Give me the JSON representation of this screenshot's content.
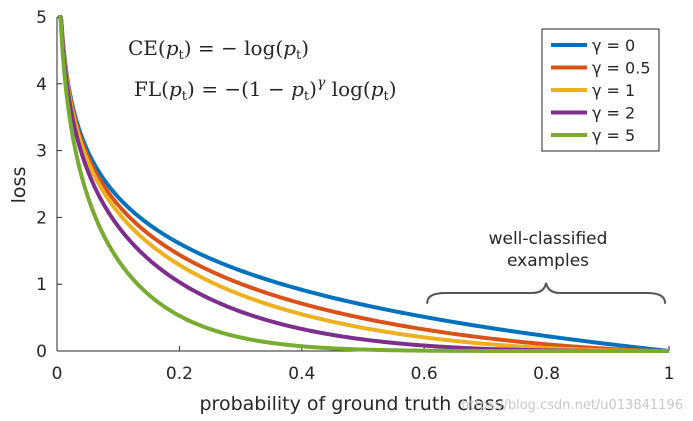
{
  "chart_data": {
    "type": "line",
    "title": "",
    "xlabel": "probability of ground truth class",
    "ylabel": "loss",
    "xlim": [
      0,
      1
    ],
    "ylim": [
      0,
      5
    ],
    "grid": false,
    "x_ticks": [
      "0",
      "0.2",
      "0.4",
      "0.6",
      "0.8",
      "1"
    ],
    "y_ticks": [
      "0",
      "1",
      "2",
      "3",
      "4",
      "5"
    ],
    "legend_position": "top-right",
    "series": [
      {
        "name": "γ = 0",
        "gamma": 0,
        "color": "#0072BD"
      },
      {
        "name": "γ = 0.5",
        "gamma": 0.5,
        "color": "#D95319"
      },
      {
        "name": "γ = 1",
        "gamma": 1,
        "color": "#EDB120"
      },
      {
        "name": "γ = 2",
        "gamma": 2,
        "color": "#7E2F8E"
      },
      {
        "name": "γ = 5",
        "gamma": 5,
        "color": "#77AC30"
      }
    ],
    "curve_formula": "loss = -(1 - p)^γ · ln(p)",
    "formulas": {
      "ce": {
        "lhs": "CE",
        "arg": "p",
        "sub": "t",
        "rhs": "− log"
      },
      "fl": {
        "lhs": "FL",
        "arg": "p",
        "sub": "t",
        "rhs": "−(1 − ",
        "gamma": "γ",
        "log": "log"
      }
    },
    "annotation": {
      "line1": "well-classified",
      "line2": "examples",
      "x_range": [
        0.6,
        1.0
      ]
    }
  },
  "watermark": "https://blog.csdn.net/u013841196"
}
